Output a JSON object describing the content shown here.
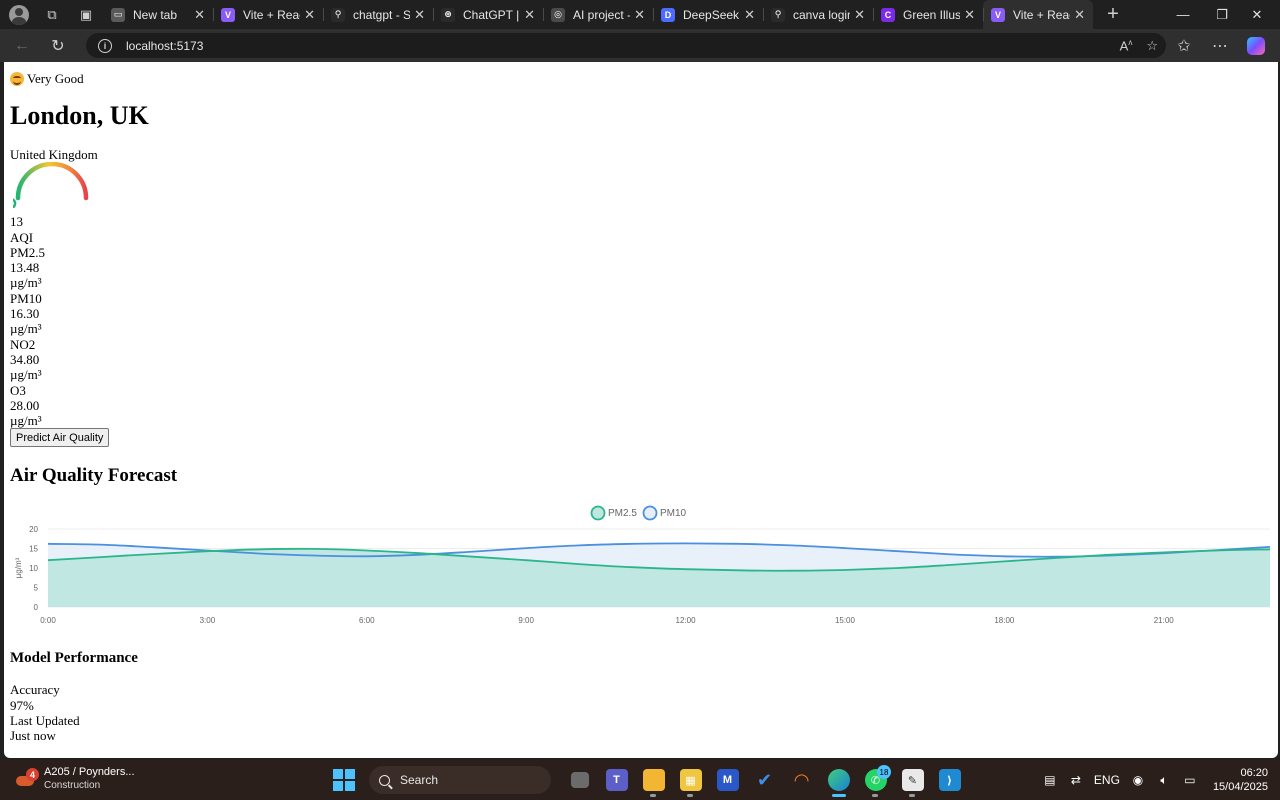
{
  "browser": {
    "tabs": [
      {
        "label": "New tab",
        "color": "#5a5a5a",
        "glyph": "▭"
      },
      {
        "label": "Vite + React",
        "color": "#8a5cf6",
        "glyph": "V"
      },
      {
        "label": "chatgpt - Sea",
        "color": "#2a2a2a",
        "glyph": "⚲"
      },
      {
        "label": "ChatGPT | Op",
        "color": "#2a2a2a",
        "glyph": "⊛"
      },
      {
        "label": "AI project - Ta",
        "color": "#4a4a4a",
        "glyph": "◎"
      },
      {
        "label": "DeepSeek - In",
        "color": "#4d6bfe",
        "glyph": "D"
      },
      {
        "label": "canva login -",
        "color": "#2a2a2a",
        "glyph": "⚲"
      },
      {
        "label": "Green Illustra",
        "color": "#7d2ae8",
        "glyph": "C"
      },
      {
        "label": "Vite + React",
        "color": "#8a5cf6",
        "glyph": "V"
      }
    ],
    "url": "localhost:5173"
  },
  "page": {
    "status": "Very Good",
    "city": "London, UK",
    "country": "United Kingdom",
    "aqi": {
      "value": "13",
      "label": "AQI",
      "gauge_fraction": 0.13
    },
    "pollutants": [
      {
        "name": "PM2.5",
        "value": "13.48",
        "unit": "µg/m³"
      },
      {
        "name": "PM10",
        "value": "16.30",
        "unit": "µg/m³"
      },
      {
        "name": "NO2",
        "value": "34.80",
        "unit": "µg/m³"
      },
      {
        "name": "O3",
        "value": "28.00",
        "unit": "µg/m³"
      }
    ],
    "predict_label": "Predict Air Quality",
    "forecast_title": "Air Quality Forecast",
    "performance": {
      "title": "Model Performance",
      "accuracy_label": "Accuracy",
      "accuracy_value": "97%",
      "updated_label": "Last Updated",
      "updated_value": "Just now"
    }
  },
  "chart_data": {
    "type": "area",
    "x": [
      "0:00",
      "1:00",
      "2:00",
      "3:00",
      "4:00",
      "5:00",
      "6:00",
      "7:00",
      "8:00",
      "9:00",
      "10:00",
      "11:00",
      "12:00",
      "13:00",
      "14:00",
      "15:00",
      "16:00",
      "17:00",
      "18:00",
      "19:00",
      "20:00",
      "21:00",
      "22:00",
      "23:00"
    ],
    "xticks": [
      "0:00",
      "3:00",
      "6:00",
      "9:00",
      "12:00",
      "15:00",
      "18:00",
      "21:00"
    ],
    "series": [
      {
        "name": "PM2.5",
        "color": "#2ab68a",
        "fill": "#bfe6e1",
        "values": [
          12.0,
          12.8,
          13.6,
          14.3,
          14.8,
          14.9,
          14.5,
          13.8,
          12.9,
          12.0,
          11.0,
          10.2,
          9.7,
          9.4,
          9.3,
          9.5,
          10.0,
          10.8,
          11.7,
          12.6,
          13.4,
          14.0,
          14.5,
          14.8
        ]
      },
      {
        "name": "PM10",
        "color": "#4a8fe0",
        "fill": "#e6eefa",
        "values": [
          16.2,
          16.0,
          15.3,
          14.5,
          13.7,
          13.2,
          13.0,
          13.4,
          14.2,
          15.1,
          15.8,
          16.2,
          16.3,
          16.2,
          15.8,
          15.1,
          14.3,
          13.5,
          13.0,
          12.9,
          13.2,
          13.8,
          14.6,
          15.4
        ]
      }
    ],
    "ylabel": "µg/m³",
    "yticks": [
      0,
      5,
      10,
      15,
      20
    ],
    "ylim": [
      0,
      20
    ],
    "legend": "top-center",
    "grid": true
  },
  "taskbar": {
    "weather_title": "A205 / Poynders...",
    "weather_sub": "Construction",
    "weather_badge": "4",
    "search_label": "Search",
    "whatsapp_count": "18",
    "lang": "ENG",
    "time": "06:20",
    "date": "15/04/2025"
  }
}
